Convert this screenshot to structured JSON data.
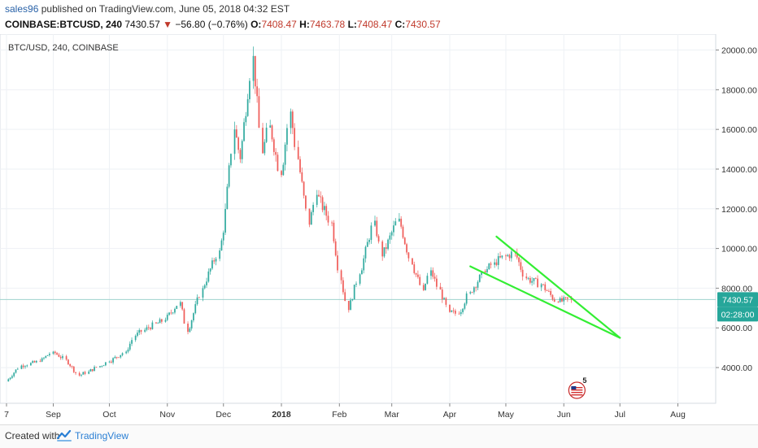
{
  "header": {
    "user": "sales96",
    "published": "published on TradingView.com, June 05, 2018 04:32 EST",
    "symbol": "COINBASE:BTCUSD, 240",
    "price": "7430.57",
    "arrow": "▼",
    "change": "−56.80 (−0.76%)",
    "o_label": "O:",
    "o_value": "7408.47",
    "h_label": "H:",
    "h_value": "7463.78",
    "l_label": "L:",
    "l_value": "7408.47",
    "c_label": "C:",
    "c_value": "7430.57"
  },
  "footer": {
    "created_with": "Created with",
    "brand": "TradingView"
  },
  "colors": {
    "up": "#26a69a",
    "down": "#ef5350",
    "trendline": "#33ee33",
    "price_label": "#26a69a",
    "grid": "#eef1f5"
  },
  "chart_data": {
    "type": "line",
    "title": "BTC/USD, 240, COINBASE",
    "x_ticks": [
      "7",
      "Sep",
      "Oct",
      "Nov",
      "Dec",
      "2018",
      "Feb",
      "Mar",
      "Apr",
      "May",
      "Jun",
      "Jul",
      "Aug"
    ],
    "y_ticks": [
      "4000.00",
      "6000.00",
      "8000.00",
      "10000.00",
      "12000.00",
      "14000.00",
      "16000.00",
      "18000.00",
      "20000.00"
    ],
    "ylim": [
      2200,
      20800
    ],
    "series": [
      {
        "x": [
          "2017-08-07",
          "2017-08-15",
          "2017-08-25",
          "2017-09-01",
          "2017-09-08",
          "2017-09-15",
          "2017-09-20",
          "2017-10-01",
          "2017-10-10",
          "2017-10-15",
          "2017-10-20",
          "2017-10-31",
          "2017-11-08",
          "2017-11-12",
          "2017-11-20",
          "2017-11-29",
          "2017-12-01",
          "2017-12-07",
          "2017-12-10",
          "2017-12-17",
          "2017-12-22",
          "2017-12-26",
          "2018-01-01",
          "2018-01-06",
          "2018-01-10",
          "2018-01-16",
          "2018-01-20",
          "2018-01-28",
          "2018-02-02",
          "2018-02-06",
          "2018-02-12",
          "2018-02-20",
          "2018-02-24",
          "2018-03-05",
          "2018-03-12",
          "2018-03-18",
          "2018-03-22",
          "2018-04-01",
          "2018-04-06",
          "2018-04-12",
          "2018-04-20",
          "2018-04-25",
          "2018-05-06",
          "2018-05-12",
          "2018-05-20",
          "2018-05-29",
          "2018-06-05"
        ],
        "values": [
          3300,
          4100,
          4300,
          4800,
          4400,
          3600,
          3800,
          4300,
          4800,
          5600,
          5900,
          6400,
          7300,
          5800,
          8000,
          9900,
          10800,
          16000,
          14500,
          19700,
          14800,
          16200,
          13700,
          16900,
          14500,
          11200,
          12700,
          11300,
          8400,
          6900,
          8700,
          11400,
          9600,
          11500,
          9200,
          7900,
          8900,
          6800,
          6700,
          7800,
          8800,
          9300,
          9800,
          8500,
          8200,
          7300,
          7430
        ]
      }
    ],
    "trendlines": [
      {
        "x": [
          "2018-04-26",
          "2018-07-01"
        ],
        "y": [
          10600,
          5500
        ]
      },
      {
        "x": [
          "2018-04-12",
          "2018-07-01"
        ],
        "y": [
          9100,
          5500
        ]
      }
    ],
    "last_price_label": "7430.57",
    "countdown_label": "02:28:00",
    "event_badge": "5",
    "grid": true
  }
}
